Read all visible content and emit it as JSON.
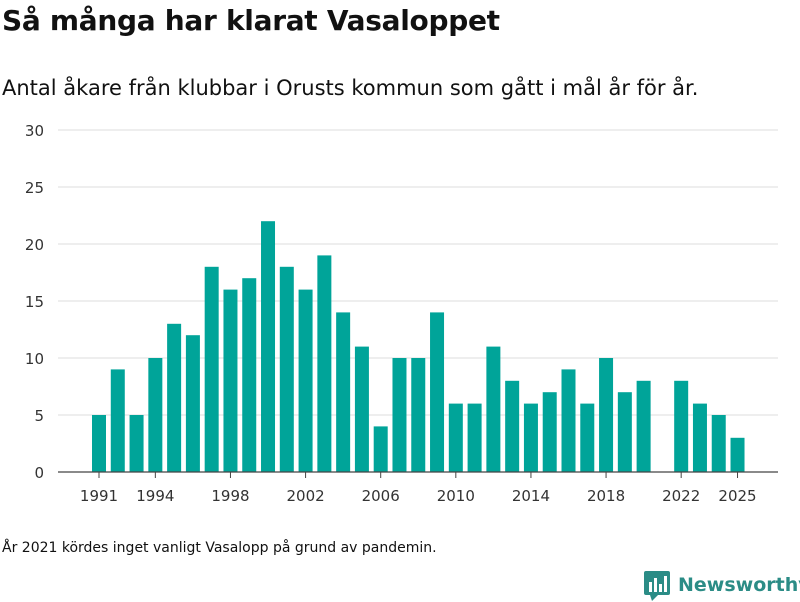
{
  "title": "Så många har klarat Vasaloppet",
  "subtitle": "Antal åkare från klubbar i Orusts kommun som gått i mål år för år.",
  "note": "År 2021 kördes inget vanligt Vasalopp på grund av pandemin.",
  "brand": {
    "name": "Newsworthy"
  },
  "colors": {
    "bar": "#00a499",
    "grid": "#dddddd",
    "axis": "#444444",
    "brand": "#2b8c86"
  },
  "chart_data": {
    "type": "bar",
    "ylim": [
      0,
      30
    ],
    "yticks": [
      "0",
      "5",
      "10",
      "15",
      "20",
      "25",
      "30"
    ],
    "xticks": [
      "1991",
      "1994",
      "1998",
      "2002",
      "2006",
      "2010",
      "2014",
      "2018",
      "2022",
      "2025"
    ],
    "grid": true,
    "categories": [
      1991,
      1992,
      1993,
      1994,
      1995,
      1996,
      1997,
      1998,
      1999,
      2000,
      2001,
      2002,
      2003,
      2004,
      2005,
      2006,
      2007,
      2008,
      2009,
      2010,
      2011,
      2012,
      2013,
      2014,
      2015,
      2016,
      2017,
      2018,
      2019,
      2020,
      2022,
      2023,
      2024,
      2025
    ],
    "values": [
      5,
      9,
      5,
      10,
      13,
      12,
      18,
      16,
      17,
      22,
      18,
      16,
      19,
      14,
      11,
      4,
      10,
      10,
      14,
      6,
      6,
      11,
      8,
      6,
      7,
      9,
      6,
      10,
      7,
      8,
      8,
      6,
      5,
      3
    ]
  }
}
